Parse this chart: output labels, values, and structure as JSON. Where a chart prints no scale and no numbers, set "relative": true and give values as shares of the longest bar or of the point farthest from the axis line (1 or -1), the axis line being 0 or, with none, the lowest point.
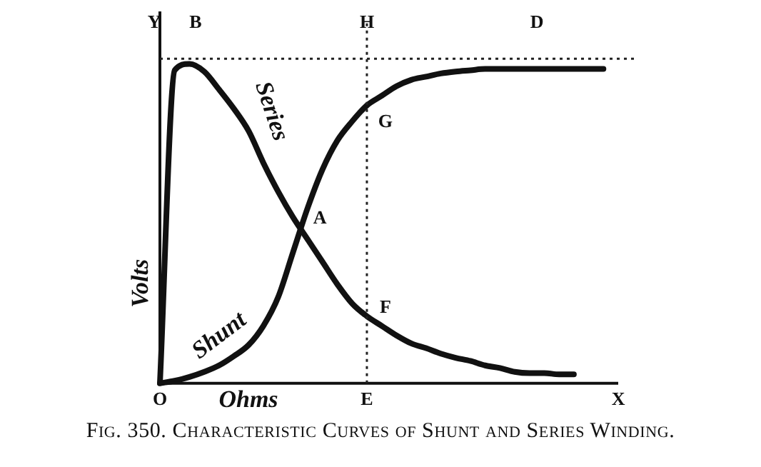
{
  "chart_data": {
    "type": "line",
    "title": "Fig. 350. Characteristic Curves of Shunt and Series Winding.",
    "xlabel": "Ohms",
    "ylabel": "Volts",
    "relative": true,
    "categories": [
      "O",
      null,
      null,
      null,
      null,
      null,
      null,
      null,
      null,
      null,
      null,
      null,
      null,
      null,
      "E",
      null,
      null,
      null,
      null,
      null,
      null,
      null,
      null,
      null,
      null,
      null,
      null,
      null,
      null,
      null,
      null,
      "X"
    ],
    "series": [
      {
        "name": "Series",
        "color": "#111111",
        "values": [
          0,
          0.98,
          1,
          0.976,
          0.92,
          0.86,
          0.79,
          0.69,
          0.6,
          0.52,
          0.45,
          0.38,
          0.31,
          0.25,
          0.21,
          0.18,
          0.15,
          0.125,
          0.11,
          0.093,
          0.08,
          0.07,
          0.056,
          0.048,
          0.036,
          0.032,
          0.032,
          0.028,
          0.028,
          null,
          null,
          null
        ]
      },
      {
        "name": "Shunt",
        "color": "#111111",
        "values": [
          0,
          0.008,
          0.02,
          0.036,
          0.056,
          0.085,
          0.12,
          0.18,
          0.27,
          0.41,
          0.55,
          0.67,
          0.76,
          0.82,
          0.87,
          0.9,
          0.93,
          0.95,
          0.96,
          0.97,
          0.976,
          0.98,
          0.984,
          0.984,
          0.984,
          0.984,
          0.984,
          0.984,
          0.984,
          0.984,
          0.984,
          null
        ]
      }
    ],
    "ref_lines": [
      {
        "axis": "y",
        "value": 1.016,
        "color": "#222222",
        "line_style": "dotted"
      },
      {
        "axis": "x",
        "value": "E",
        "color": "#222222",
        "line_style": "dotted"
      }
    ],
    "annotations": [
      "Y",
      "B",
      "H",
      "D",
      "A",
      {
        "text": "G",
        "x": "E",
        "y": 0.87
      },
      {
        "text": "F",
        "x": "E",
        "y": 0.21
      }
    ],
    "grid": false,
    "legend": false,
    "marker": "none",
    "line_style": "solid",
    "tick_labels": "x"
  }
}
